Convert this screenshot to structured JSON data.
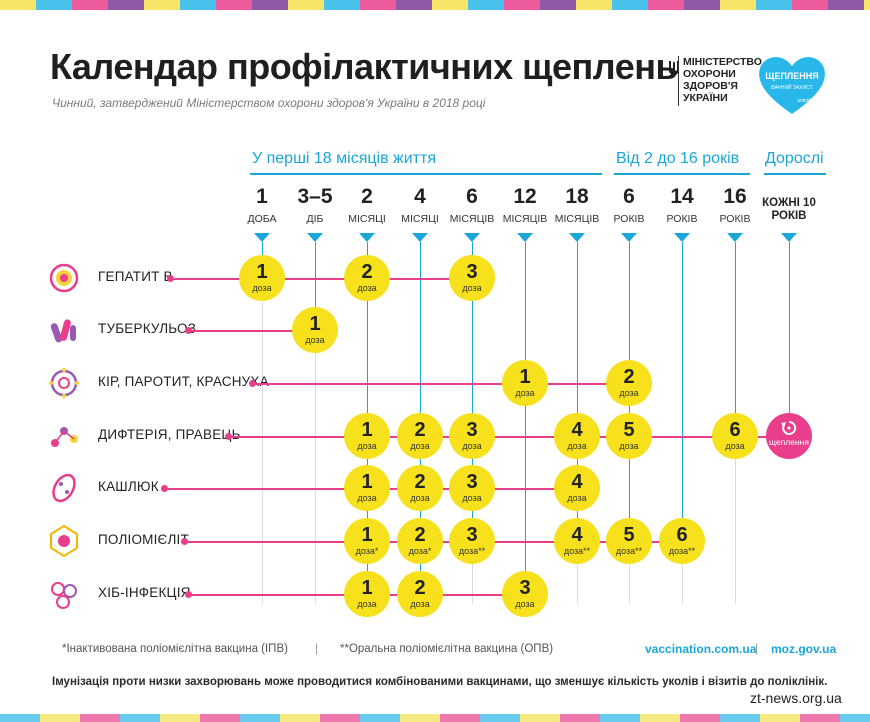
{
  "header": {
    "title": "Календар профілактичних щеплень",
    "subtitle": "Чинний, затверджений Міністерством охорони здоров'я України в 2018 році",
    "ministry": "МІНІСТЕРСТВО\nОХОРОНИ\nЗДОРОВ'Я\nУКРАЇНИ",
    "logo_title": "ЩЕПЛЕННЯ",
    "logo_sub": "ВАЧНИЙ ЗАХИСТ",
    "logo_unicef": "unicef"
  },
  "groups": [
    {
      "label": "У перші 18 місяців життя"
    },
    {
      "label": "Від 2 до 16 років"
    },
    {
      "label": "Дорослі"
    }
  ],
  "ages": [
    {
      "num": "1",
      "unit": "ДОБА"
    },
    {
      "num": "3–5",
      "unit": "ДІБ"
    },
    {
      "num": "2",
      "unit": "МІСЯЦІ"
    },
    {
      "num": "4",
      "unit": "МІСЯЦІ"
    },
    {
      "num": "6",
      "unit": "МІСЯЦІВ"
    },
    {
      "num": "12",
      "unit": "МІСЯЦІВ"
    },
    {
      "num": "18",
      "unit": "МІСЯЦІВ"
    },
    {
      "num": "6",
      "unit": "РОКІВ"
    },
    {
      "num": "14",
      "unit": "РОКІВ"
    },
    {
      "num": "16",
      "unit": "РОКІВ"
    }
  ],
  "adult_label": "КОЖНІ 10 РОКІВ",
  "dose_word": "доза",
  "booster_label": "щеплення",
  "diseases": [
    {
      "name": "ГЕПАТИТ В",
      "icon": "hepatitis-b-virus-icon",
      "doses": [
        {
          "age": 0,
          "n": "1",
          "w": "доза"
        },
        {
          "age": 2,
          "n": "2",
          "w": "доза"
        },
        {
          "age": 4,
          "n": "3",
          "w": "доза"
        }
      ]
    },
    {
      "name": "ТУБЕРКУЛЬОЗ",
      "icon": "tuberculosis-bacteria-icon",
      "doses": [
        {
          "age": 1,
          "n": "1",
          "w": "доза"
        }
      ]
    },
    {
      "name": "КІР, ПАРОТИТ, КРАСНУХА",
      "icon": "measles-virus-icon",
      "doses": [
        {
          "age": 5,
          "n": "1",
          "w": "доза"
        },
        {
          "age": 7,
          "n": "2",
          "w": "доза"
        }
      ]
    },
    {
      "name": "ДИФТЕРІЯ, ПРАВЕЦЬ",
      "icon": "diphtheria-bacteria-icon",
      "doses": [
        {
          "age": 2,
          "n": "1",
          "w": "доза"
        },
        {
          "age": 3,
          "n": "2",
          "w": "доза"
        },
        {
          "age": 4,
          "n": "3",
          "w": "доза"
        },
        {
          "age": 6,
          "n": "4",
          "w": "доза"
        },
        {
          "age": 7,
          "n": "5",
          "w": "доза"
        },
        {
          "age": 9,
          "n": "6",
          "w": "доза"
        }
      ]
    },
    {
      "name": "КАШЛЮК",
      "icon": "pertussis-bacteria-icon",
      "doses": [
        {
          "age": 2,
          "n": "1",
          "w": "доза"
        },
        {
          "age": 3,
          "n": "2",
          "w": "доза"
        },
        {
          "age": 4,
          "n": "3",
          "w": "доза"
        },
        {
          "age": 6,
          "n": "4",
          "w": "доза"
        }
      ]
    },
    {
      "name": "ПОЛІОМІЄЛІТ",
      "icon": "poliovirus-icon",
      "doses": [
        {
          "age": 2,
          "n": "1",
          "w": "доза*"
        },
        {
          "age": 3,
          "n": "2",
          "w": "доза*"
        },
        {
          "age": 4,
          "n": "3",
          "w": "доза**"
        },
        {
          "age": 6,
          "n": "4",
          "w": "доза**"
        },
        {
          "age": 7,
          "n": "5",
          "w": "доза**"
        },
        {
          "age": 8,
          "n": "6",
          "w": "доза**"
        }
      ]
    },
    {
      "name": "ХІБ-ІНФЕКЦІЯ",
      "icon": "hib-bacteria-icon",
      "doses": [
        {
          "age": 2,
          "n": "1",
          "w": "доза"
        },
        {
          "age": 3,
          "n": "2",
          "w": "доза"
        },
        {
          "age": 5,
          "n": "3",
          "w": "доза"
        }
      ]
    }
  ],
  "footer": {
    "footnote1": "*Інактивована поліомієлітна вакцина (ІПВ)",
    "footnote2": "**Оральна поліомієлітна вакцина (ОПВ)",
    "site1": "vaccination.com.ua",
    "site2": "moz.gov.ua",
    "note": "Імунізація проти низки захворювань може проводитися комбінованими вакцинами, що зменшує кількість уколів і візитів до поліклінік.",
    "watermark": "zt-news.org.ua"
  },
  "colors": {
    "accent_blue": "#1aa6d8",
    "dose_yellow": "#f7e11c",
    "line_pink": "#e83e8c"
  }
}
